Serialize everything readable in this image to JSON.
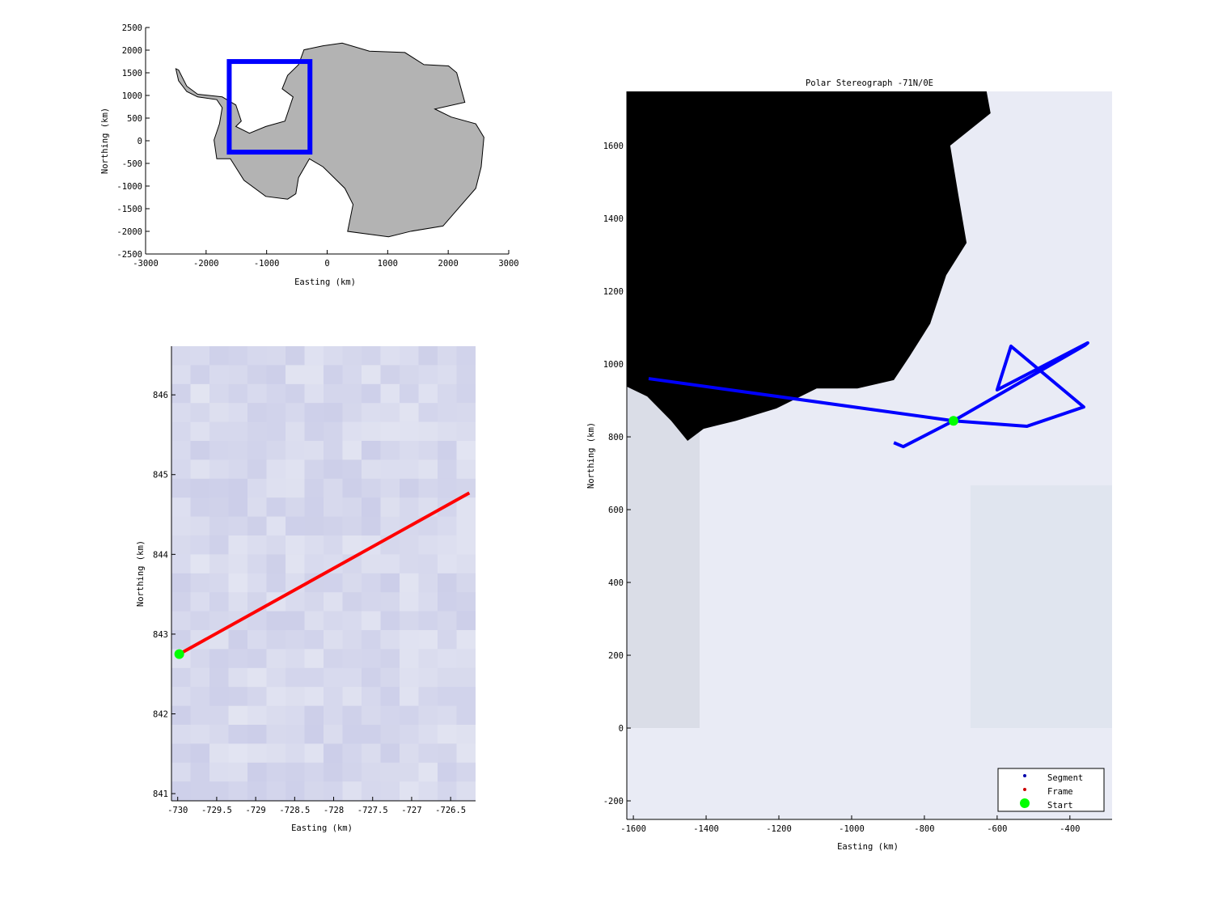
{
  "chart_data": [
    {
      "type": "map",
      "xlabel": "Easting (km)",
      "ylabel": "Northing (km)",
      "xlim": [
        -3000,
        3000
      ],
      "ylim": [
        -2500,
        2500
      ],
      "xticks": [
        -3000,
        -2000,
        -1000,
        0,
        1000,
        2000,
        3000
      ],
      "yticks": [
        2500,
        2000,
        1500,
        1000,
        500,
        0,
        -500,
        -1000,
        -1500,
        -2000,
        -2500
      ],
      "land_color": "#b3b3b3",
      "box_color": "#0000ff",
      "highlight_box": {
        "x": [
          -1618,
          -284
        ],
        "y": [
          -251,
          1749
        ]
      },
      "coastline": [
        [
          -2500,
          1590
        ],
        [
          -2455,
          1325
        ],
        [
          -2320,
          1087
        ],
        [
          -2140,
          968
        ],
        [
          -1824,
          908
        ],
        [
          -1734,
          730
        ],
        [
          -1779,
          374
        ],
        [
          -1869,
          18
        ],
        [
          -1824,
          -398
        ],
        [
          -1599,
          -398
        ],
        [
          -1374,
          -873
        ],
        [
          -1014,
          -1229
        ],
        [
          -653,
          -1289
        ],
        [
          -518,
          -1170
        ],
        [
          -473,
          -814
        ],
        [
          -293,
          -398
        ],
        [
          -68,
          -576
        ],
        [
          293,
          -1051
        ],
        [
          428,
          -1407
        ],
        [
          338,
          -2001
        ],
        [
          1014,
          -2120
        ],
        [
          1374,
          -2001
        ],
        [
          1914,
          -1882
        ],
        [
          2455,
          -1051
        ],
        [
          2545,
          -576
        ],
        [
          2590,
          77
        ],
        [
          2455,
          374
        ],
        [
          2050,
          523
        ],
        [
          1779,
          701
        ],
        [
          2275,
          849
        ],
        [
          2140,
          1502
        ],
        [
          2005,
          1651
        ],
        [
          1599,
          1680
        ],
        [
          1284,
          1948
        ],
        [
          698,
          1977
        ],
        [
          248,
          2156
        ],
        [
          -68,
          2096
        ],
        [
          -383,
          2007
        ],
        [
          -473,
          1680
        ],
        [
          -653,
          1443
        ],
        [
          -743,
          1146
        ],
        [
          -563,
          968
        ],
        [
          -698,
          433
        ],
        [
          -1014,
          315
        ],
        [
          -1284,
          166
        ],
        [
          -1509,
          315
        ],
        [
          -1419,
          433
        ],
        [
          -1509,
          790
        ],
        [
          -1734,
          968
        ],
        [
          -2140,
          1027
        ],
        [
          -2320,
          1206
        ],
        [
          -2455,
          1563
        ]
      ]
    },
    {
      "type": "line",
      "xlabel": "Easting (km)",
      "ylabel": "Northing (km)",
      "xlim": [
        -730.08,
        -726.18
      ],
      "ylim": [
        840.91,
        846.61
      ],
      "xticks": [
        -730,
        -729.5,
        -729,
        -728.5,
        -728,
        -727.5,
        -727,
        -726.5
      ],
      "xtick_labels": [
        "-730",
        "-729.5",
        "-729",
        "-728.5",
        "-728",
        "-727.5",
        "-727",
        "-726.5"
      ],
      "yticks": [
        846,
        845,
        844,
        843,
        842,
        841
      ],
      "frame_line": {
        "x": [
          -729.98,
          -726.26
        ],
        "y": [
          842.75,
          844.77
        ],
        "color": "#ff0000"
      },
      "start": {
        "x": -729.98,
        "y": 842.75,
        "color": "#00ff00"
      },
      "background_color": "#d4d6ec"
    },
    {
      "type": "line",
      "title": "Polar Stereograph -71N/0E",
      "xlabel": "Easting (km)",
      "ylabel": "Northing (km)",
      "xlim": [
        -1618,
        -284
      ],
      "ylim": [
        -251,
        1749
      ],
      "xticks": [
        -1600,
        -1400,
        -1200,
        -1000,
        -800,
        -600,
        -400
      ],
      "yticks": [
        1600,
        1400,
        1200,
        1000,
        800,
        600,
        400,
        200,
        0,
        -200
      ],
      "segment": {
        "color": "#0000ff",
        "x": [
          -1558,
          -720,
          -518,
          -362,
          -562,
          -600,
          -351,
          -358,
          -720,
          -858,
          -884
        ],
        "y": [
          960,
          844,
          829,
          882,
          1049,
          929,
          1058,
          1052,
          844,
          773,
          784
        ]
      },
      "start": {
        "x": -720,
        "y": 844,
        "color": "#00ff00"
      },
      "ocean": [
        [
          -1618,
          1749
        ],
        [
          -629,
          1749
        ],
        [
          -618,
          1689
        ],
        [
          -729,
          1600
        ],
        [
          -707,
          1467
        ],
        [
          -684,
          1333
        ],
        [
          -740,
          1244
        ],
        [
          -784,
          1111
        ],
        [
          -840,
          1022
        ],
        [
          -884,
          956
        ],
        [
          -984,
          933
        ],
        [
          -1096,
          933
        ],
        [
          -1207,
          878
        ],
        [
          -1318,
          844
        ],
        [
          -1407,
          822
        ],
        [
          -1451,
          789
        ],
        [
          -1496,
          844
        ],
        [
          -1562,
          911
        ],
        [
          -1618,
          938
        ]
      ],
      "ocean_color": "#000000",
      "ice_color": "#e9ebf5",
      "legend": {
        "placement": "bottom-right",
        "entries": [
          {
            "label": "Segment",
            "color": "#0000aa"
          },
          {
            "label": "Frame",
            "color": "#cc0000"
          },
          {
            "label": "Start",
            "color": "#00ff00"
          }
        ]
      }
    }
  ]
}
